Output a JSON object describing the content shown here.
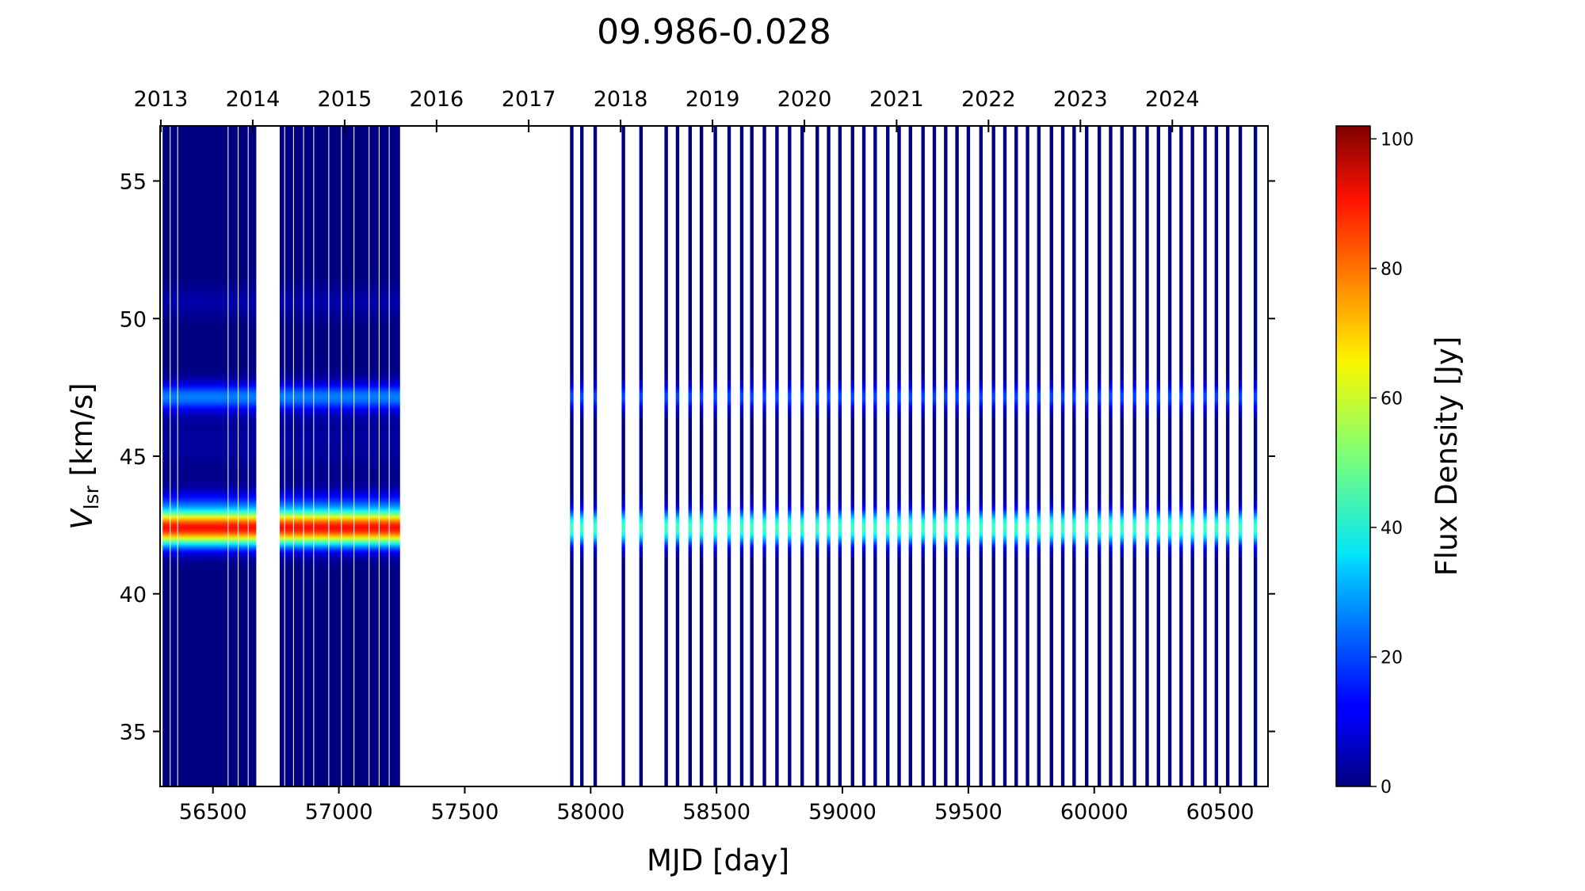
{
  "chart_data": {
    "type": "heatmap",
    "title": "09.986-0.028",
    "xlabel": "MJD [day]",
    "ylabel_main": "V",
    "ylabel_sub": "lsr",
    "ylabel_unit": " [km/s]",
    "colorbar_label": "Flux Density [Jy]",
    "colormap": "jet",
    "xlim": [
      56290,
      60690
    ],
    "ylim": [
      33,
      57
    ],
    "clim": [
      0,
      102
    ],
    "x_ticks": [
      56500,
      57000,
      57500,
      58000,
      58500,
      59000,
      59500,
      60000,
      60500
    ],
    "x_tick_labels": [
      "56500",
      "57000",
      "57500",
      "58000",
      "58500",
      "59000",
      "59500",
      "60000",
      "60500"
    ],
    "y_ticks": [
      35,
      40,
      45,
      50,
      55
    ],
    "y_tick_labels": [
      "35",
      "40",
      "45",
      "50",
      "55"
    ],
    "top_axis": {
      "label_values": [
        "2013",
        "2014",
        "2015",
        "2016",
        "2017",
        "2018",
        "2019",
        "2020",
        "2021",
        "2022",
        "2023",
        "2024"
      ],
      "mjd_positions": [
        56293,
        56658,
        57023,
        57388,
        57754,
        58119,
        58484,
        58849,
        59215,
        59580,
        59945,
        60310
      ]
    },
    "colorbar_ticks": [
      0,
      20,
      40,
      60,
      80,
      100
    ],
    "colorbar_tick_labels": [
      "0",
      "20",
      "40",
      "60",
      "80",
      "100"
    ],
    "dense_blocks": [
      {
        "start": 56300,
        "end": 56672,
        "gaps": [
          56330,
          56360,
          56560,
          56600,
          56640
        ]
      },
      {
        "start": 56765,
        "end": 57243,
        "gaps": [
          56785,
          56820,
          56860,
          56900,
          56960,
          57010,
          57060,
          57120,
          57160,
          57200
        ]
      }
    ],
    "observation_mjd": [
      57925,
      57965,
      58018,
      58130,
      58200,
      58300,
      58345,
      58395,
      58440,
      58495,
      58550,
      58600,
      58640,
      58690,
      58740,
      58790,
      58840,
      58900,
      58945,
      58990,
      59040,
      59085,
      59130,
      59180,
      59225,
      59270,
      59320,
      59365,
      59410,
      59455,
      59500,
      59550,
      59600,
      59645,
      59690,
      59735,
      59780,
      59830,
      59875,
      59920,
      59970,
      60020,
      60065,
      60110,
      60160,
      60210,
      60255,
      60300,
      60345,
      60390,
      60440,
      60485,
      60530,
      60580,
      60640
    ],
    "spectral_features": [
      {
        "v": 42.4,
        "width": 0.45,
        "flux_early": 88,
        "flux_late": 45
      },
      {
        "v": 47.15,
        "width": 0.35,
        "flux_early": 25,
        "flux_late": 20
      },
      {
        "v": 43.4,
        "width": 0.3,
        "flux_early": 10,
        "flux_late": 0
      },
      {
        "v": 50.6,
        "width": 0.4,
        "flux_early": 4,
        "flux_late": 0
      },
      {
        "v": 45.5,
        "width": 0.8,
        "flux_early": 3,
        "flux_late": 0
      }
    ]
  }
}
